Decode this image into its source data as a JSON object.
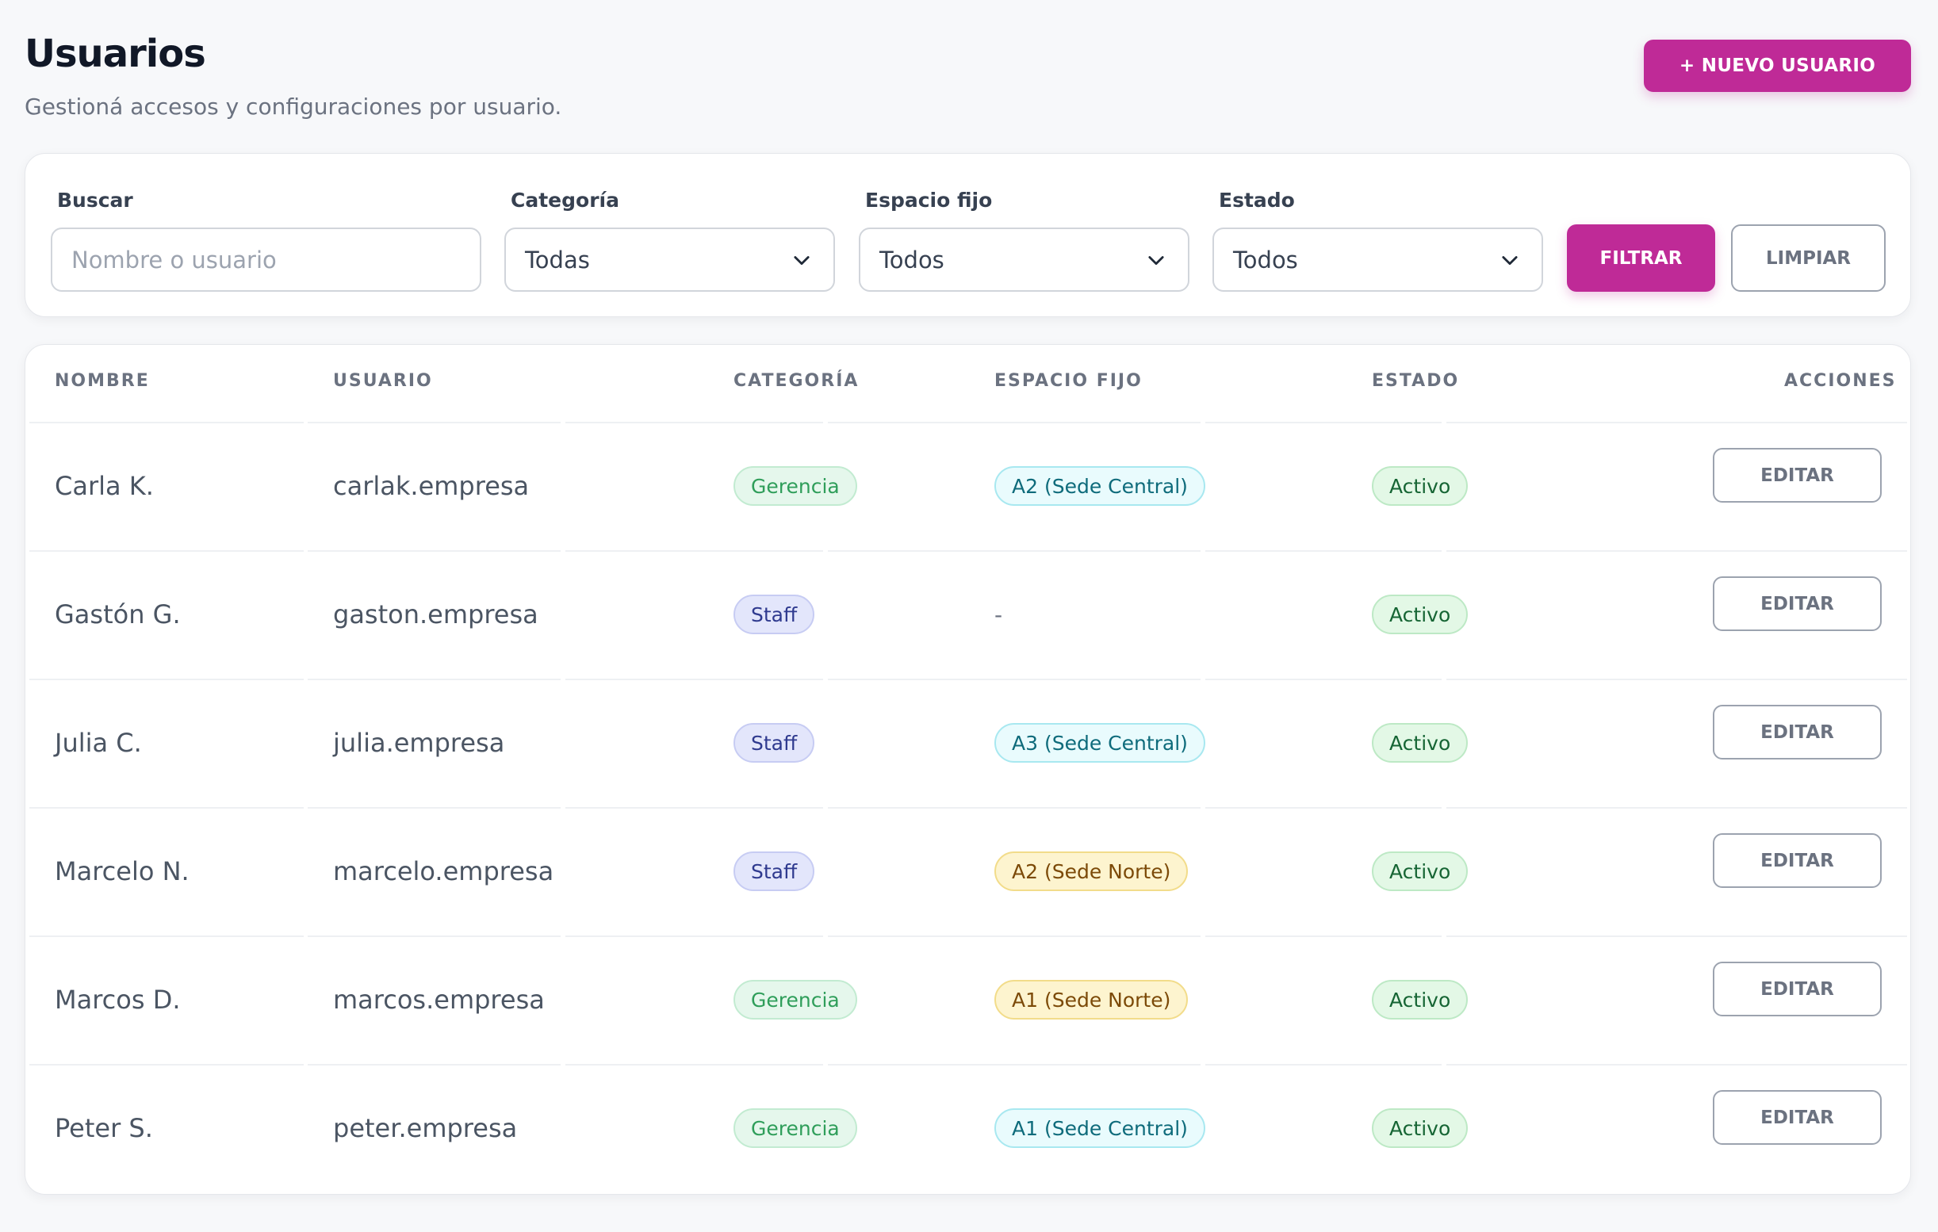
{
  "header": {
    "title": "Usuarios",
    "subtitle": "Gestioná accesos y configuraciones por usuario.",
    "new_user_label": "+ NUEVO USUARIO"
  },
  "filters": {
    "search_label": "Buscar",
    "search_placeholder": "Nombre o usuario",
    "search_value": "",
    "category_label": "Categoría",
    "category_value": "Todas",
    "space_label": "Espacio fijo",
    "space_value": "Todos",
    "status_label": "Estado",
    "status_value": "Todos",
    "filter_button": "FILTRAR",
    "clear_button": "LIMPIAR"
  },
  "table": {
    "columns": [
      "NOMBRE",
      "USUARIO",
      "CATEGORÍA",
      "ESPACIO FIJO",
      "ESTADO",
      "ACCIONES"
    ],
    "rows": [
      {
        "name": "Carla K.",
        "user": "carlak.empresa",
        "category": "Gerencia",
        "space": "A2 (Sede Central)",
        "status": "Activo",
        "action": "EDITAR"
      },
      {
        "name": "Gastón G.",
        "user": "gaston.empresa",
        "category": "Staff",
        "space": "-",
        "status": "Activo",
        "action": "EDITAR"
      },
      {
        "name": "Julia C.",
        "user": "julia.empresa",
        "category": "Staff",
        "space": "A3 (Sede Central)",
        "status": "Activo",
        "action": "EDITAR"
      },
      {
        "name": "Marcelo N.",
        "user": "marcelo.empresa",
        "category": "Staff",
        "space": "A2 (Sede Norte)",
        "status": "Activo",
        "action": "EDITAR"
      },
      {
        "name": "Marcos D.",
        "user": "marcos.empresa",
        "category": "Gerencia",
        "space": "A1 (Sede Norte)",
        "status": "Activo",
        "action": "EDITAR"
      },
      {
        "name": "Peter S.",
        "user": "peter.empresa",
        "category": "Gerencia",
        "space": "A1 (Sede Central)",
        "status": "Activo",
        "action": "EDITAR"
      }
    ]
  },
  "colors": {
    "accent": "#bf2a97",
    "background": "#f7f8fa"
  },
  "icons": {
    "dropdown": "chevron-down-icon"
  }
}
